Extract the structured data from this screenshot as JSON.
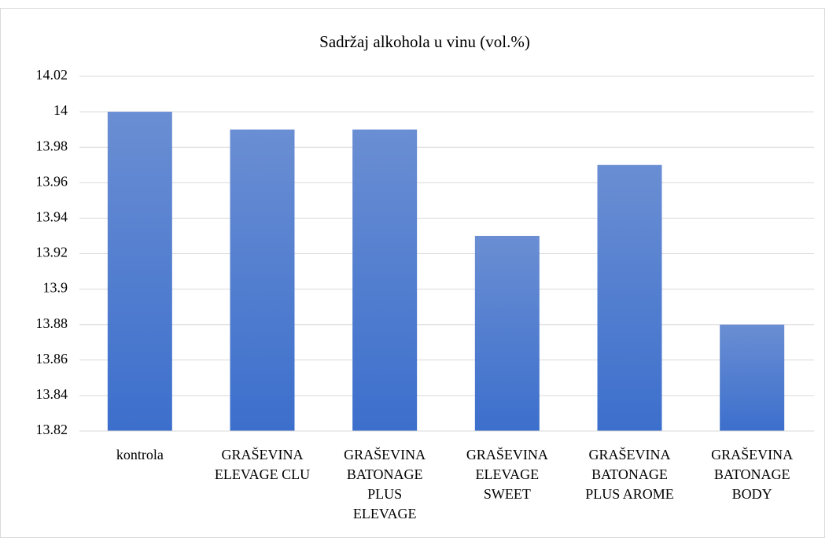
{
  "chart_data": {
    "type": "bar",
    "title": "Sadržaj alkohola u vinu (vol.%)",
    "categories": [
      "kontrola",
      "GRAŠEVINA ELEVAGE CLU",
      "GRAŠEVINA BATONAGE PLUS ELEVAGE",
      "GRAŠEVINA ELEVAGE SWEET",
      "GRAŠEVINA BATONAGE PLUS AROME",
      "GRAŠEVINA BATONAGE BODY"
    ],
    "values": [
      14,
      13.99,
      13.99,
      13.93,
      13.97,
      13.88
    ],
    "color": "#4a76cf",
    "ylim": [
      13.82,
      14.02
    ],
    "yticks": [
      13.82,
      13.84,
      13.86,
      13.88,
      13.9,
      13.92,
      13.94,
      13.96,
      13.98,
      14,
      14.02
    ],
    "grid": true
  }
}
